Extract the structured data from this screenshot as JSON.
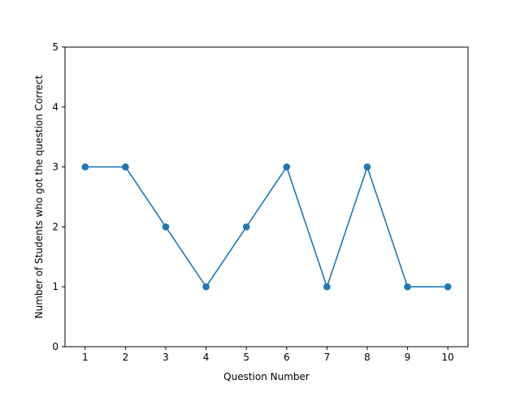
{
  "chart_data": {
    "type": "line",
    "title": "",
    "xlabel": "Question Number",
    "ylabel": "Number of Students who got the question Correct",
    "x": [
      1,
      2,
      3,
      4,
      5,
      6,
      7,
      8,
      9,
      10
    ],
    "series": [
      {
        "name": "",
        "values": [
          3,
          3,
          2,
          1,
          2,
          3,
          1,
          3,
          1,
          1
        ],
        "color": "#1f77b4",
        "marker": "circle"
      }
    ],
    "xticks": [
      "1",
      "2",
      "3",
      "4",
      "5",
      "6",
      "7",
      "8",
      "9",
      "10"
    ],
    "yticks": [
      "0",
      "1",
      "2",
      "3",
      "4",
      "5"
    ],
    "xlim": [
      0.5,
      10.5
    ],
    "ylim": [
      0,
      5
    ],
    "grid": false,
    "legend": "none"
  }
}
